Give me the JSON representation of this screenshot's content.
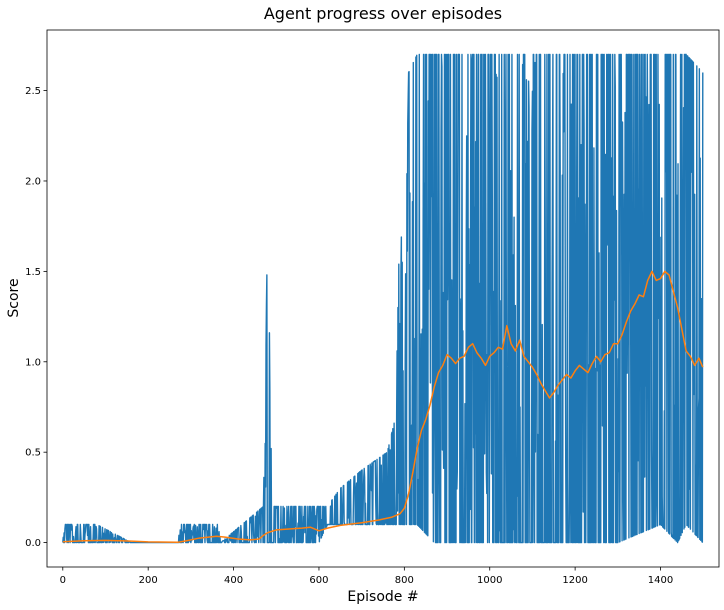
{
  "chart_data": {
    "type": "line",
    "title": "Agent progress over episodes",
    "xlabel": "Episode #",
    "ylabel": "Score",
    "xlim": [
      -37,
      1537
    ],
    "ylim": [
      -0.135,
      2.835
    ],
    "x_ticks": [
      0,
      200,
      400,
      600,
      800,
      1000,
      1200,
      1400
    ],
    "y_ticks": [
      0.0,
      0.5,
      1.0,
      1.5,
      2.0,
      2.5
    ],
    "x_tick_labels": [
      "0",
      "200",
      "400",
      "600",
      "800",
      "1000",
      "1200",
      "1400"
    ],
    "y_tick_labels": [
      "0.0",
      "0.5",
      "1.0",
      "1.5",
      "2.0",
      "2.5"
    ],
    "grid": false,
    "legend": null,
    "series": [
      {
        "color": "#1f77b4",
        "style": "spiky",
        "envelope": [
          [
            0,
            0.0,
            0.1
          ],
          [
            80,
            0.0,
            0.1
          ],
          [
            160,
            0.0,
            0.0
          ],
          [
            270,
            0.0,
            0.0
          ],
          [
            275,
            0.0,
            0.1
          ],
          [
            365,
            0.0,
            0.1
          ],
          [
            370,
            0.0,
            0.0
          ],
          [
            420,
            0.0,
            0.1
          ],
          [
            470,
            0.0,
            0.2
          ],
          [
            480,
            0.0,
            1.8
          ],
          [
            490,
            0.0,
            0.2
          ],
          [
            560,
            0.0,
            0.2
          ],
          [
            600,
            0.0,
            0.2
          ],
          [
            620,
            0.1,
            0.2
          ],
          [
            650,
            0.1,
            0.3
          ],
          [
            700,
            0.1,
            0.4
          ],
          [
            760,
            0.1,
            0.5
          ],
          [
            780,
            0.1,
            0.7
          ],
          [
            790,
            0.1,
            1.9
          ],
          [
            800,
            0.1,
            1.2
          ],
          [
            810,
            0.1,
            2.6
          ],
          [
            830,
            0.1,
            2.7
          ],
          [
            870,
            0.0,
            2.7
          ],
          [
            1000,
            0.0,
            2.7
          ],
          [
            1100,
            0.0,
            2.7
          ],
          [
            1200,
            0.0,
            2.7
          ],
          [
            1300,
            0.0,
            2.7
          ],
          [
            1400,
            0.1,
            2.7
          ],
          [
            1440,
            0.0,
            2.7
          ],
          [
            1460,
            0.1,
            2.7
          ],
          [
            1499,
            0.0,
            2.6
          ]
        ]
      },
      {
        "color": "#ff7f0e",
        "style": "smooth",
        "points": [
          [
            0,
            0.005
          ],
          [
            50,
            0.01
          ],
          [
            100,
            0.012
          ],
          [
            160,
            0.008
          ],
          [
            200,
            0.004
          ],
          [
            270,
            0.002
          ],
          [
            290,
            0.01
          ],
          [
            320,
            0.025
          ],
          [
            360,
            0.035
          ],
          [
            380,
            0.03
          ],
          [
            410,
            0.02
          ],
          [
            440,
            0.015
          ],
          [
            460,
            0.02
          ],
          [
            470,
            0.04
          ],
          [
            480,
            0.055
          ],
          [
            500,
            0.07
          ],
          [
            530,
            0.075
          ],
          [
            560,
            0.08
          ],
          [
            580,
            0.085
          ],
          [
            600,
            0.065
          ],
          [
            620,
            0.08
          ],
          [
            650,
            0.095
          ],
          [
            700,
            0.11
          ],
          [
            740,
            0.125
          ],
          [
            770,
            0.14
          ],
          [
            790,
            0.16
          ],
          [
            800,
            0.19
          ],
          [
            810,
            0.27
          ],
          [
            820,
            0.39
          ],
          [
            830,
            0.52
          ],
          [
            840,
            0.62
          ],
          [
            850,
            0.68
          ],
          [
            860,
            0.76
          ],
          [
            870,
            0.86
          ],
          [
            880,
            0.94
          ],
          [
            890,
            0.98
          ],
          [
            900,
            1.04
          ],
          [
            910,
            1.02
          ],
          [
            920,
            0.99
          ],
          [
            930,
            1.02
          ],
          [
            940,
            1.03
          ],
          [
            950,
            1.08
          ],
          [
            960,
            1.1
          ],
          [
            970,
            1.05
          ],
          [
            980,
            1.02
          ],
          [
            990,
            0.98
          ],
          [
            1000,
            1.03
          ],
          [
            1010,
            1.05
          ],
          [
            1020,
            1.08
          ],
          [
            1030,
            1.07
          ],
          [
            1040,
            1.2
          ],
          [
            1050,
            1.1
          ],
          [
            1060,
            1.06
          ],
          [
            1070,
            1.12
          ],
          [
            1080,
            1.03
          ],
          [
            1090,
            1.0
          ],
          [
            1100,
            0.97
          ],
          [
            1110,
            0.93
          ],
          [
            1120,
            0.88
          ],
          [
            1130,
            0.84
          ],
          [
            1140,
            0.8
          ],
          [
            1150,
            0.83
          ],
          [
            1160,
            0.87
          ],
          [
            1170,
            0.9
          ],
          [
            1180,
            0.93
          ],
          [
            1190,
            0.91
          ],
          [
            1200,
            0.95
          ],
          [
            1210,
            0.98
          ],
          [
            1220,
            0.96
          ],
          [
            1230,
            0.94
          ],
          [
            1240,
            0.99
          ],
          [
            1250,
            1.03
          ],
          [
            1260,
            1.0
          ],
          [
            1270,
            1.04
          ],
          [
            1280,
            1.05
          ],
          [
            1290,
            1.1
          ],
          [
            1300,
            1.1
          ],
          [
            1310,
            1.15
          ],
          [
            1320,
            1.22
          ],
          [
            1330,
            1.28
          ],
          [
            1340,
            1.32
          ],
          [
            1350,
            1.37
          ],
          [
            1360,
            1.36
          ],
          [
            1370,
            1.45
          ],
          [
            1380,
            1.5
          ],
          [
            1390,
            1.45
          ],
          [
            1400,
            1.46
          ],
          [
            1410,
            1.5
          ],
          [
            1420,
            1.48
          ],
          [
            1430,
            1.39
          ],
          [
            1440,
            1.3
          ],
          [
            1450,
            1.18
          ],
          [
            1460,
            1.06
          ],
          [
            1470,
            1.03
          ],
          [
            1480,
            0.98
          ],
          [
            1490,
            1.02
          ],
          [
            1499,
            0.97
          ]
        ]
      }
    ]
  }
}
